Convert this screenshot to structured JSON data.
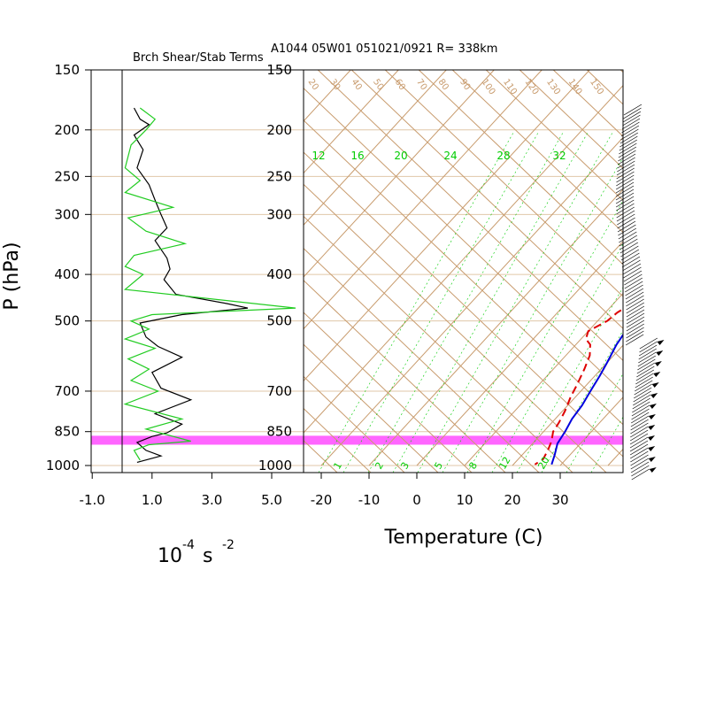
{
  "header": {
    "title": "A1044 05W01 051021/0921 R= 338km",
    "left_title": "Brch Shear/Stab Terms"
  },
  "axes": {
    "ylabel": "P (hPa)",
    "pressure_ticks": [
      "150",
      "200",
      "250",
      "300",
      "400",
      "500",
      "700",
      "850",
      "1000"
    ],
    "left_x_ticks": [
      "-1.0",
      "1.0",
      "3.0",
      "5.0"
    ],
    "left_xlabel_base": "10",
    "left_xlabel_exp1": "-4",
    "left_xlabel_unit": " s ",
    "left_xlabel_exp2": "-2",
    "temp_ticks": [
      "-20",
      "-10",
      "0",
      "10",
      "20",
      "30"
    ],
    "temp_xlabel": "Temperature (C)"
  },
  "theta_labels": [
    "20",
    "30",
    "40",
    "50",
    "60",
    "70",
    "80",
    "90",
    "100",
    "110",
    "120",
    "130",
    "140",
    "150"
  ],
  "mixing_labels_top": [
    "12",
    "16",
    "20",
    "24",
    "28",
    "32"
  ],
  "mixing_labels_bottom": [
    "1",
    "2",
    "3",
    "5",
    "8",
    "12",
    "20"
  ],
  "colors": {
    "temperature": "#0000dd",
    "dewpoint": "#dd0000",
    "shear": "#000000",
    "stability": "#22cc22",
    "highlight": "#ff66ff",
    "adiabat": "#c89b6d",
    "mixing": "#00cc00"
  },
  "chart_data": [
    {
      "type": "line",
      "title": "Brch Shear/Stab Terms",
      "xlabel": "10^-4 s^-2",
      "ylabel": "P (hPa)",
      "xlim": [
        -1.0,
        5.8
      ],
      "ylim": [
        1000,
        150
      ],
      "y_scale": "log",
      "series": [
        {
          "values_key": "black",
          "points": [
            [
              0.4,
              180
            ],
            [
              0.6,
              190
            ],
            [
              0.9,
              195
            ],
            [
              0.4,
              205
            ],
            [
              0.7,
              220
            ],
            [
              0.5,
              240
            ],
            [
              0.9,
              260
            ],
            [
              1.1,
              280
            ],
            [
              1.3,
              300
            ],
            [
              1.5,
              320
            ],
            [
              1.1,
              340
            ],
            [
              1.5,
              370
            ],
            [
              1.6,
              390
            ],
            [
              1.4,
              410
            ],
            [
              1.8,
              440
            ],
            [
              3.5,
              460
            ],
            [
              4.2,
              470
            ],
            [
              2.0,
              485
            ],
            [
              0.6,
              505
            ],
            [
              0.8,
              540
            ],
            [
              1.2,
              565
            ],
            [
              2.0,
              595
            ],
            [
              1.0,
              640
            ],
            [
              1.3,
              690
            ],
            [
              2.3,
              730
            ],
            [
              1.1,
              780
            ],
            [
              2.0,
              820
            ],
            [
              1.5,
              855
            ],
            [
              1.0,
              870
            ],
            [
              0.5,
              895
            ],
            [
              0.8,
              930
            ],
            [
              1.3,
              955
            ],
            [
              0.5,
              985
            ]
          ]
        },
        {
          "values_key": "green",
          "points": [
            [
              0.6,
              180
            ],
            [
              1.1,
              190
            ],
            [
              0.8,
              200
            ],
            [
              0.3,
              215
            ],
            [
              0.1,
              240
            ],
            [
              0.6,
              255
            ],
            [
              0.1,
              270
            ],
            [
              1.7,
              290
            ],
            [
              0.2,
              305
            ],
            [
              0.8,
              325
            ],
            [
              2.1,
              345
            ],
            [
              0.4,
              365
            ],
            [
              0.1,
              385
            ],
            [
              0.7,
              400
            ],
            [
              0.1,
              430
            ],
            [
              5.8,
              470
            ],
            [
              1.0,
              485
            ],
            [
              0.3,
              500
            ],
            [
              0.9,
              520
            ],
            [
              0.1,
              545
            ],
            [
              1.1,
              570
            ],
            [
              0.2,
              600
            ],
            [
              0.9,
              630
            ],
            [
              0.3,
              665
            ],
            [
              1.2,
              700
            ],
            [
              0.1,
              745
            ],
            [
              2.0,
              800
            ],
            [
              0.8,
              840
            ],
            [
              2.3,
              890
            ],
            [
              0.9,
              905
            ],
            [
              0.4,
              930
            ],
            [
              0.6,
              975
            ]
          ]
        }
      ]
    },
    {
      "type": "line",
      "title": "A1044 05W01 051021/0921 R= 338km",
      "xlabel": "Temperature (C)",
      "ylabel": "P (hPa)",
      "xlim": [
        -24,
        38
      ],
      "ylim": [
        1000,
        150
      ],
      "y_scale": "log",
      "series": [
        {
          "values_key": "temperature",
          "points": [
            [
              0.0,
              172
            ],
            [
              1.8,
              195
            ],
            [
              3.8,
              220
            ],
            [
              5.6,
              250
            ],
            [
              7.7,
              280
            ],
            [
              10.2,
              310
            ],
            [
              12.5,
              350
            ],
            [
              14.6,
              390
            ],
            [
              16.2,
              430
            ],
            [
              17.0,
              460
            ],
            [
              16.5,
              480
            ],
            [
              17.5,
              510
            ],
            [
              18.5,
              560
            ],
            [
              20.0,
              610
            ],
            [
              21.0,
              650
            ],
            [
              22.0,
              700
            ],
            [
              23.0,
              750
            ],
            [
              23.5,
              800
            ],
            [
              24.5,
              850
            ],
            [
              25.2,
              900
            ],
            [
              26.8,
              950
            ],
            [
              28.0,
              995
            ]
          ]
        },
        {
          "values_key": "dewpoint",
          "points": [
            [
              -2.3,
              205
            ],
            [
              0.0,
              225
            ],
            [
              2.5,
              250
            ],
            [
              4.0,
              275
            ],
            [
              6.0,
              300
            ],
            [
              7.8,
              335
            ],
            [
              10.2,
              375
            ],
            [
              11.8,
              410
            ],
            [
              13.0,
              440
            ],
            [
              13.5,
              465
            ],
            [
              12.5,
              480
            ],
            [
              12.0,
              500
            ],
            [
              10.0,
              525
            ],
            [
              11.0,
              545
            ],
            [
              13.0,
              560
            ],
            [
              15.0,
              590
            ],
            [
              16.5,
              630
            ],
            [
              18.0,
              680
            ],
            [
              19.0,
              720
            ],
            [
              20.5,
              770
            ],
            [
              21.5,
              815
            ],
            [
              22.0,
              850
            ],
            [
              23.5,
              890
            ],
            [
              24.5,
              930
            ],
            [
              25.2,
              970
            ],
            [
              24.5,
              995
            ]
          ]
        }
      ]
    }
  ]
}
